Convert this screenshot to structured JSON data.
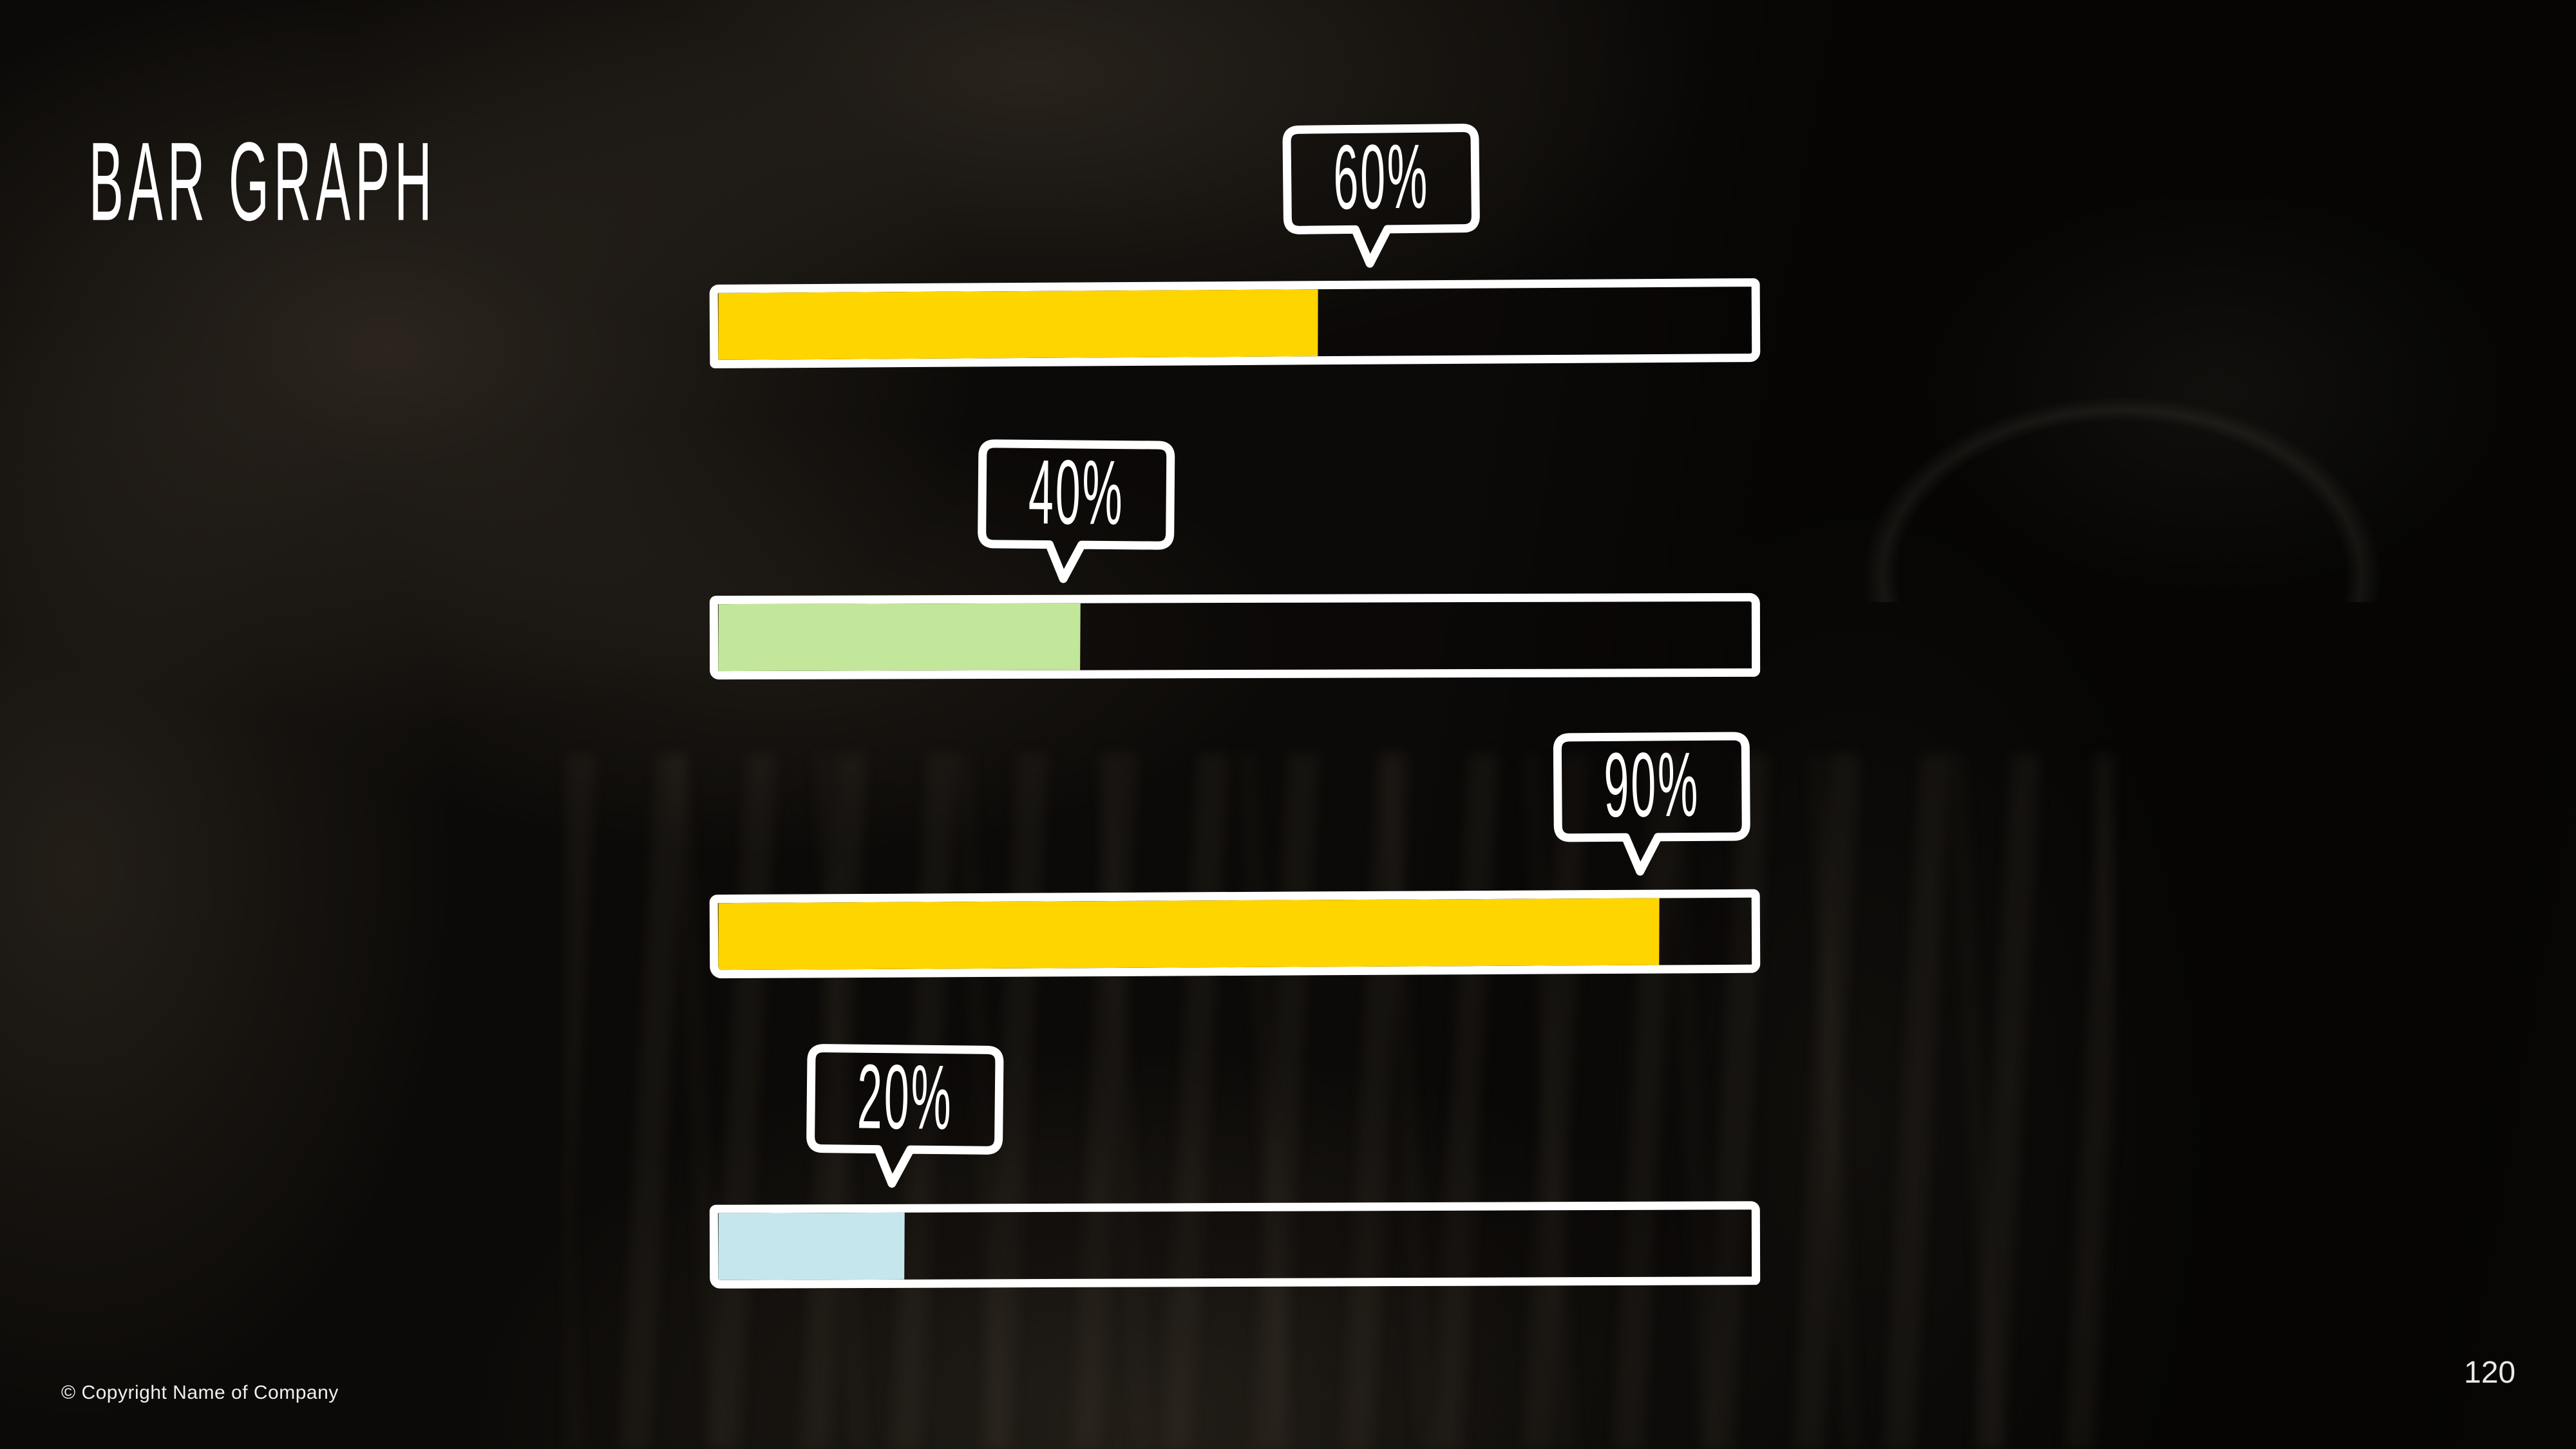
{
  "slide": {
    "title": "BAR GRAPH",
    "footer": "© Copyright Name of Company",
    "page_number": "120"
  },
  "chart_data": {
    "type": "bar",
    "orientation": "horizontal",
    "title": "BAR GRAPH",
    "unit": "%",
    "categories": [
      "bar-1",
      "bar-2",
      "bar-3",
      "bar-4"
    ],
    "values": [
      60,
      40,
      90,
      20
    ],
    "bars": [
      {
        "label": "60%",
        "value": 60,
        "fill_percent": 58,
        "color": "#FFD500"
      },
      {
        "label": "40%",
        "value": 40,
        "fill_percent": 35,
        "color": "#C3E79A"
      },
      {
        "label": "90%",
        "value": 90,
        "fill_percent": 91,
        "color": "#FFD500"
      },
      {
        "label": "20%",
        "value": 20,
        "fill_percent": 18,
        "color": "#C5E6EC"
      }
    ],
    "xlim": [
      0,
      100
    ],
    "grid": false,
    "legend": null,
    "style": {
      "track_outline_color": "#FFFFFF",
      "background": "chalkboard",
      "label_style": "speech-bubble callout above each bar"
    }
  }
}
